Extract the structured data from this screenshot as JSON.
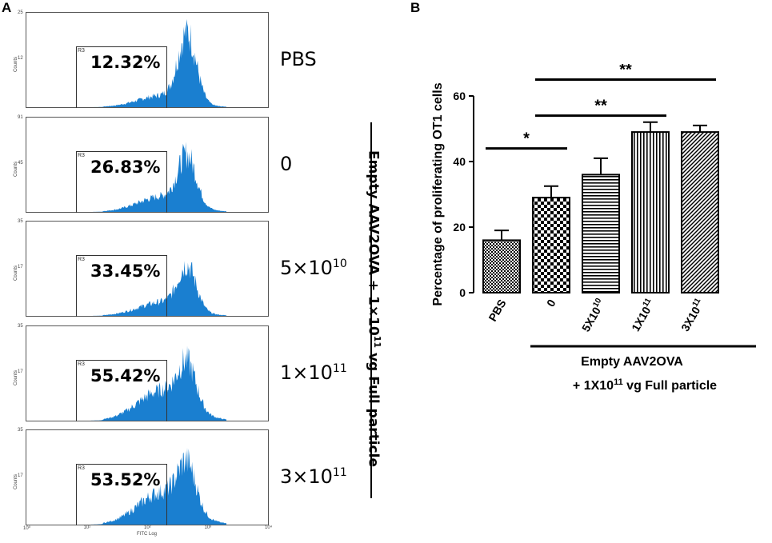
{
  "panel_a": {
    "letter": "A",
    "counts_axis_label": "Counts",
    "gate_label": "R3",
    "x_axis_label": "FITC Log",
    "x_ticks": [
      "10⁰",
      "10¹",
      "10²",
      "10³",
      "10⁴"
    ],
    "histograms": [
      {
        "percent": "12.32%",
        "condition": "PBS",
        "sup": "",
        "ymax_tick": "25",
        "ymid_tick": "12",
        "peak": 0.82
      },
      {
        "percent": "26.83%",
        "condition": "0",
        "sup": "",
        "ymax_tick": "91",
        "ymid_tick": "45",
        "peak": 0.62
      },
      {
        "percent": "33.45%",
        "condition": "5×10",
        "sup": "10",
        "ymax_tick": "35",
        "ymid_tick": "17",
        "peak": 0.55
      },
      {
        "percent": "55.42%",
        "condition": "1×10",
        "sup": "11",
        "ymax_tick": "35",
        "ymid_tick": "17",
        "peak": 0.62
      },
      {
        "percent": "53.52%",
        "condition": "3×10",
        "sup": "11",
        "ymax_tick": "35",
        "ymid_tick": "17",
        "peak": 0.66
      }
    ],
    "bracket_label_main": "Empty AAV2OVA + 1×10",
    "bracket_label_sup": "11",
    "bracket_label_tail": "vg Full particle"
  },
  "panel_b": {
    "letter": "B",
    "group_label_line1": "Empty AAV2OVA",
    "group_label_line2_pre": "+ 1X10",
    "group_label_line2_sup": "11",
    "group_label_line2_post": " vg Full particle"
  },
  "chart_data": {
    "type": "bar",
    "title": "",
    "xlabel": "",
    "ylabel": "Percentage of proliferating OT1 cells",
    "ylim": [
      0,
      60
    ],
    "yticks": [
      "0",
      "20",
      "40",
      "60"
    ],
    "categories": [
      "PBS",
      "0",
      "5X10",
      "1X10",
      "3X10"
    ],
    "category_sups": [
      "",
      "",
      "10",
      "11",
      "11"
    ],
    "values": [
      16,
      29,
      36,
      49,
      49
    ],
    "errors": [
      3,
      3.5,
      5,
      3,
      2
    ],
    "patterns": [
      "checker-small",
      "checker-large",
      "horizontal",
      "vertical",
      "diagonal"
    ],
    "significance": [
      {
        "from": 0,
        "to": 1,
        "label": "*",
        "y": 44
      },
      {
        "from": 1,
        "to": 3,
        "label": "**",
        "y": 54
      },
      {
        "from": 1,
        "to": 4,
        "label": "**",
        "y": 65
      }
    ]
  }
}
